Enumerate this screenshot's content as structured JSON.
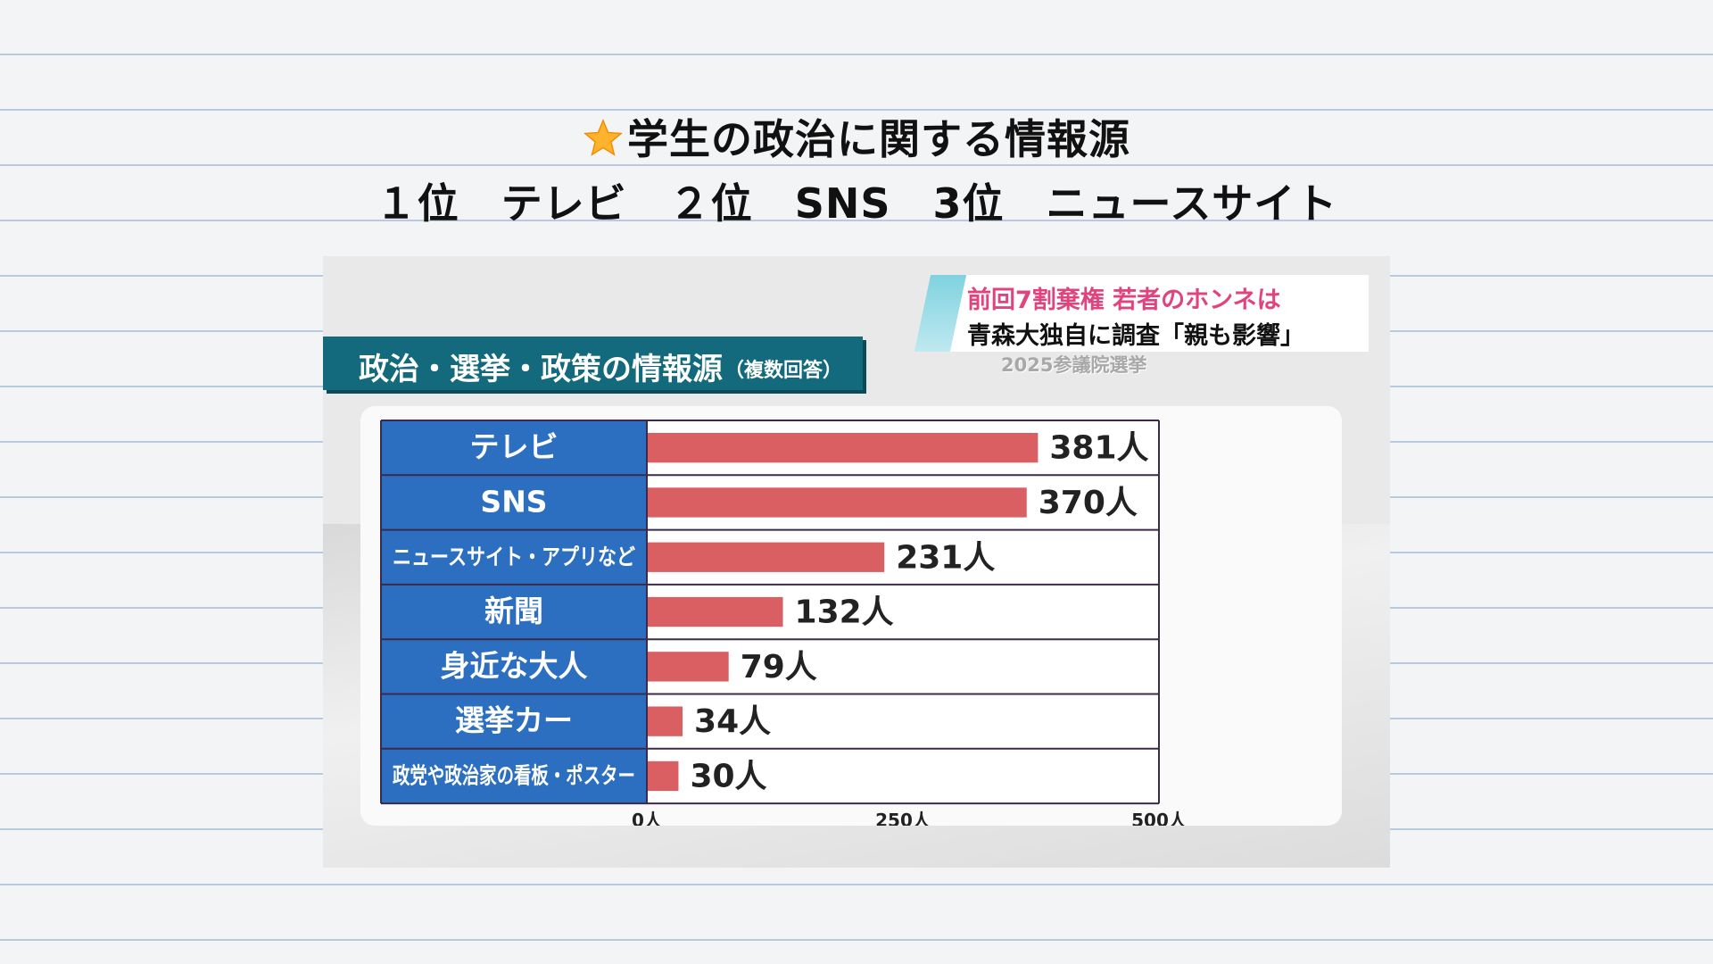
{
  "page": {
    "title": "学生の政治に関する情報源",
    "subtitle": "１位　テレビ　２位　SNS　3位　ニュースサイト",
    "title_icon": "star-icon"
  },
  "news_screenshot": {
    "headline_pink": "前回7割棄権 若者のホンネは",
    "headline_black": "青森大独自に調査「親も影響」",
    "program_label": "2025参議院選挙"
  },
  "colors": {
    "label_cell": "#2c6fc0",
    "bar": "#d95f63",
    "banner": "#136a7c",
    "pink_text": "#e0447f",
    "ruled_lines": "#b9c9e2"
  },
  "chart_data": {
    "type": "bar",
    "orientation": "horizontal",
    "title": "政治・選挙・政策の情報源",
    "title_note": "（複数回答）",
    "categories": [
      "テレビ",
      "SNS",
      "ニュースサイト・アプリなど",
      "新聞",
      "身近な大人",
      "選挙カー",
      "政党や政治家の看板・ポスター"
    ],
    "values": [
      381,
      370,
      231,
      132,
      79,
      34,
      30
    ],
    "value_labels": [
      "381人",
      "370人",
      "231人",
      "132人",
      "79人",
      "34人",
      "30人"
    ],
    "xlim": [
      0,
      500
    ],
    "ticks": [
      {
        "value": 0,
        "label": "0人"
      },
      {
        "value": 250,
        "label": "250人"
      },
      {
        "value": 500,
        "label": "500人"
      }
    ],
    "grid": false,
    "legend": "none"
  }
}
